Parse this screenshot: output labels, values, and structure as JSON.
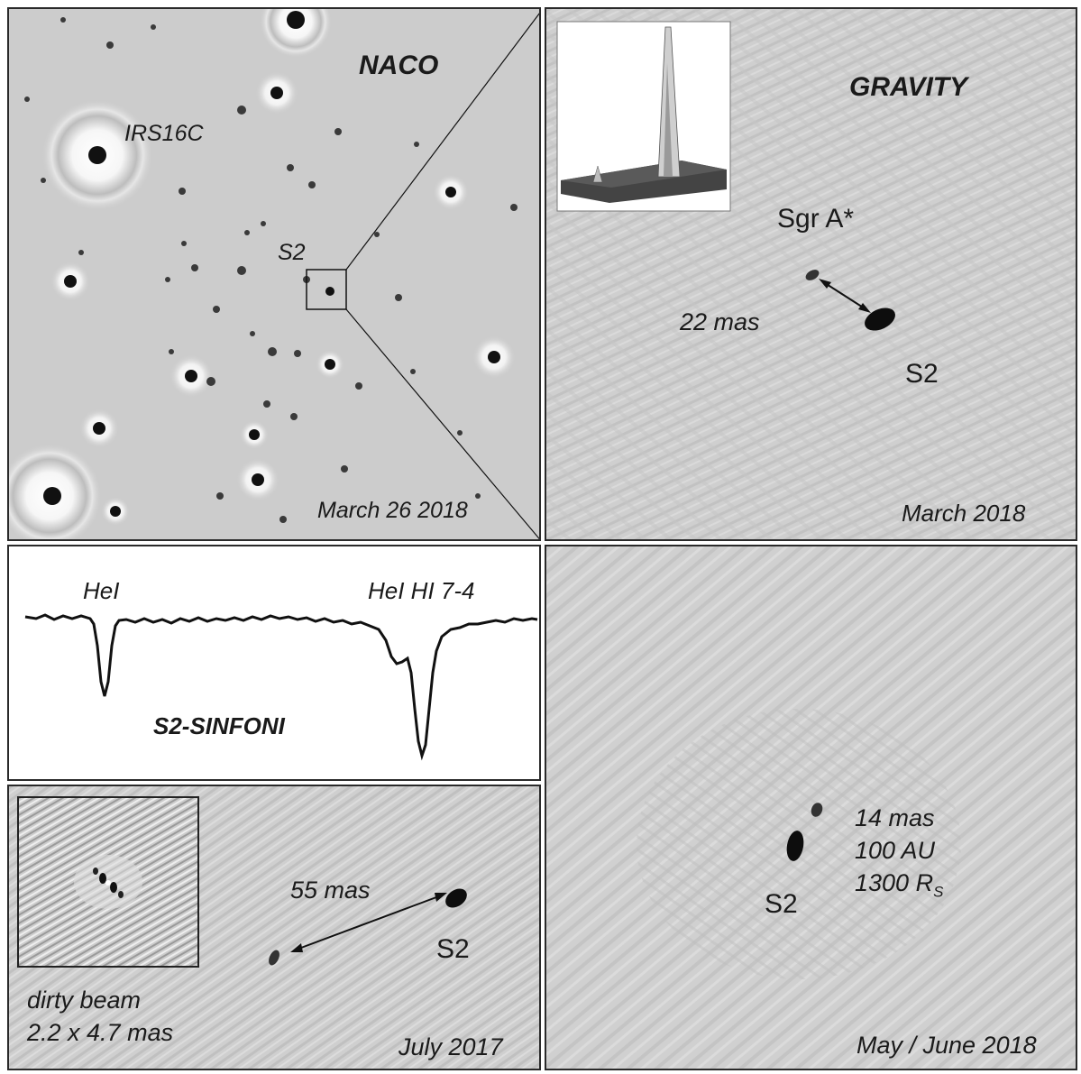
{
  "naco": {
    "title": "NACO",
    "star_label_irs16c": "IRS16C",
    "star_label_s2": "S2",
    "date": "March 26 2018"
  },
  "gravity_march": {
    "title": "GRAVITY",
    "label_sgra": "Sgr A*",
    "label_separation": "22 mas",
    "label_s2": "S2",
    "date": "March 2018"
  },
  "spectrum": {
    "label_hei": "HeI",
    "label_hei_hi": "HeI HI 7-4",
    "title": "S2-SINFONI"
  },
  "july": {
    "label_separation": "55 mas",
    "label_s2": "S2",
    "beam_label": "dirty beam",
    "beam_size": "2.2 x 4.7 mas",
    "date": "July 2017"
  },
  "may": {
    "label_mas": "14 mas",
    "label_au": "100 AU",
    "label_rs_main": "1300 R",
    "label_rs_sub": "S",
    "label_s2": "S2",
    "date": "May / June 2018"
  },
  "colors": {
    "panel_bg": "#d0d0d0",
    "naco_bg": "#cbcbcb",
    "ink": "#111111"
  }
}
